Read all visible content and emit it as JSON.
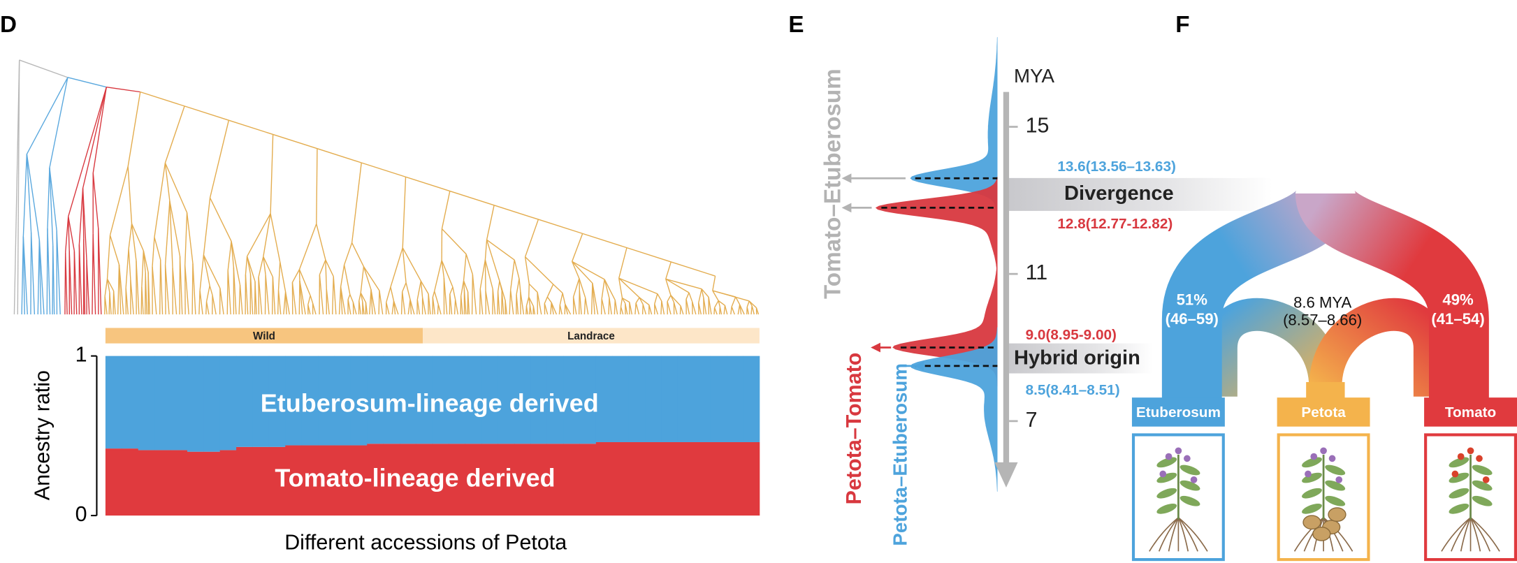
{
  "panel_d": {
    "label": "D",
    "groups": [
      "Wild",
      "Landrace"
    ],
    "y_axis_label": "Ancestry ratio",
    "x_axis_label": "Different accessions of Petota",
    "ylim": [
      0,
      1
    ],
    "yticks": [
      0,
      1
    ],
    "series": [
      {
        "name": "Tomato-lineage derived",
        "color": "#e03a3e",
        "values": [
          0.42,
          0.42,
          0.41,
          0.41,
          0.41,
          0.4,
          0.4,
          0.41,
          0.43,
          0.43,
          0.43,
          0.44,
          0.44,
          0.44,
          0.44,
          0.44,
          0.45,
          0.45,
          0.45,
          0.45,
          0.45,
          0.45,
          0.45,
          0.45,
          0.45,
          0.45,
          0.45,
          0.45,
          0.45,
          0.45,
          0.46,
          0.46,
          0.46,
          0.46,
          0.46,
          0.46,
          0.46,
          0.46,
          0.46,
          0.46
        ]
      },
      {
        "name": "Etuberosum-lineage derived",
        "color": "#4da3dc",
        "values": [
          0.58,
          0.58,
          0.59,
          0.59,
          0.59,
          0.6,
          0.6,
          0.59,
          0.57,
          0.57,
          0.57,
          0.56,
          0.56,
          0.56,
          0.56,
          0.56,
          0.55,
          0.55,
          0.55,
          0.55,
          0.55,
          0.55,
          0.55,
          0.55,
          0.55,
          0.55,
          0.55,
          0.55,
          0.55,
          0.55,
          0.54,
          0.54,
          0.54,
          0.54,
          0.54,
          0.54,
          0.54,
          0.54,
          0.54,
          0.54
        ]
      }
    ]
  },
  "panel_e": {
    "label": "E",
    "axis_label": "MYA",
    "ylim": [
      16,
      5.3
    ],
    "yticks": [
      15,
      11,
      7
    ],
    "bands": [
      "Divergence",
      "Hybrid origin"
    ],
    "pairs": [
      {
        "name": "Tomato–Etuberosum",
        "color": "#b3b3b3"
      },
      {
        "name": "Petota–Tomato",
        "color": "#d8383f"
      },
      {
        "name": "Petota–Etuberosum",
        "color": "#4da3dc"
      }
    ],
    "peaks": [
      {
        "value": 13.6,
        "label": "13.6(13.56–13.63)",
        "color": "#4da3dc"
      },
      {
        "value": 12.8,
        "label": "12.8(12.77-12.82)",
        "color": "#d8383f"
      },
      {
        "value": 9.0,
        "label": "9.0(8.95-9.00)",
        "color": "#d8383f"
      },
      {
        "value": 8.5,
        "label": "8.5(8.41–8.51)",
        "color": "#4da3dc"
      }
    ]
  },
  "panel_f": {
    "label": "F",
    "node": [
      "8.6 MYA",
      "(8.57–8.66)"
    ],
    "left_contribution": [
      "51%",
      "(46–59)"
    ],
    "right_contribution": [
      "49%",
      "(41–54)"
    ],
    "taxa": [
      {
        "name": "Etuberosum",
        "color": "#4da3dc"
      },
      {
        "name": "Petota",
        "color": "#f4b34c"
      },
      {
        "name": "Tomato",
        "color": "#e03a3e"
      }
    ]
  }
}
